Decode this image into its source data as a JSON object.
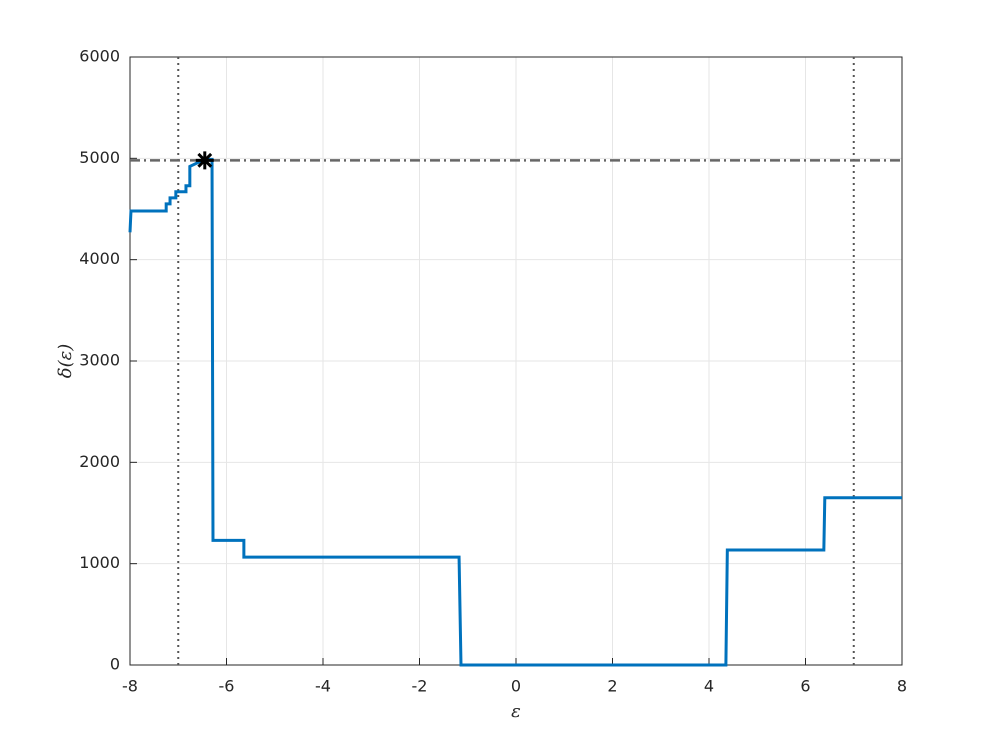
{
  "chart_data": {
    "type": "line",
    "xlabel": "ε",
    "ylabel": "δ(ε)",
    "x": [
      -8,
      -7.98,
      -7.25,
      -7.25,
      -7.17,
      -7.17,
      -7.05,
      -7.05,
      -6.84,
      -6.84,
      -6.76,
      -6.76,
      -6.45,
      -6.3,
      -6.28,
      -5.64,
      -5.64,
      -1.18,
      -1.14,
      4.35,
      4.38,
      6.38,
      6.4,
      8
    ],
    "series": [
      {
        "color": "#0072bd",
        "values": [
          4270,
          4480,
          4480,
          4550,
          4550,
          4610,
          4610,
          4670,
          4670,
          4730,
          4730,
          4920,
          4990,
          4990,
          1230,
          1230,
          1065,
          1065,
          0,
          0,
          1135,
          1135,
          1650,
          1650
        ]
      }
    ],
    "hline": 4980,
    "vlines": [
      -7,
      7
    ],
    "marker": {
      "x": -6.45,
      "y": 4980
    },
    "xlim": [
      -8,
      8
    ],
    "ylim": [
      0,
      6000
    ],
    "xticks": [
      -8,
      -6,
      -4,
      -2,
      0,
      2,
      4,
      6,
      8
    ],
    "yticks": [
      0,
      1000,
      2000,
      3000,
      4000,
      5000,
      6000
    ],
    "grid": true
  }
}
